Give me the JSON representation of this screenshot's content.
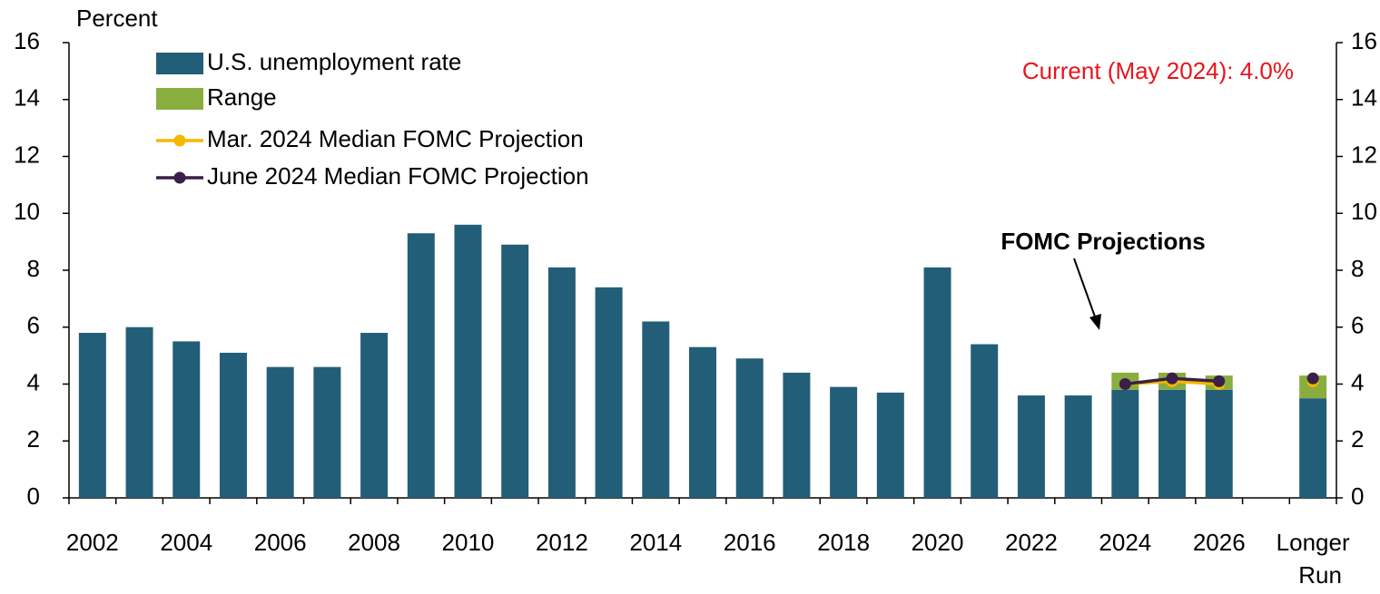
{
  "chart_data": {
    "type": "bar",
    "y_label": "Percent",
    "annotations": [
      "Current (May 2024): 4.0%",
      "FOMC Projections"
    ],
    "annotation_color": "#e8141b",
    "categories": [
      "2002",
      null,
      "2004",
      null,
      "2006",
      null,
      "2008",
      null,
      "2010",
      null,
      "2012",
      null,
      "2014",
      null,
      "2016",
      null,
      "2018",
      null,
      "2020",
      null,
      "2022",
      null,
      "2024",
      null,
      "2026",
      null,
      "Longer Run"
    ],
    "series": [
      {
        "name": "U.S. unemployment rate",
        "type": "bar",
        "color": "#235e78",
        "values": [
          5.8,
          6.0,
          5.5,
          5.1,
          4.6,
          4.6,
          5.8,
          9.3,
          9.6,
          8.9,
          8.1,
          7.4,
          6.2,
          5.3,
          4.9,
          4.4,
          3.9,
          3.7,
          8.1,
          5.4,
          3.6,
          3.6,
          3.8,
          3.8,
          3.8,
          null,
          3.5
        ]
      },
      {
        "name": "Range",
        "type": "bar",
        "color": "#8aad3f",
        "values": [
          null,
          null,
          null,
          null,
          null,
          null,
          null,
          null,
          null,
          null,
          null,
          null,
          null,
          null,
          null,
          null,
          null,
          null,
          null,
          null,
          null,
          null,
          0.6,
          0.6,
          0.5,
          null,
          0.8
        ]
      },
      {
        "name": "Mar. 2024 Median FOMC Projection",
        "type": "line",
        "color": "#f5b800",
        "values": [
          null,
          null,
          null,
          null,
          null,
          null,
          null,
          null,
          null,
          null,
          null,
          null,
          null,
          null,
          null,
          null,
          null,
          null,
          null,
          null,
          null,
          null,
          4.0,
          4.1,
          4.0,
          null,
          4.1
        ]
      },
      {
        "name": "June 2024 Median FOMC Projection",
        "type": "line",
        "color": "#3a1f48",
        "values": [
          null,
          null,
          null,
          null,
          null,
          null,
          null,
          null,
          null,
          null,
          null,
          null,
          null,
          null,
          null,
          null,
          null,
          null,
          null,
          null,
          null,
          null,
          4.0,
          4.2,
          4.1,
          null,
          4.2
        ]
      }
    ],
    "ylim": [
      0,
      16
    ],
    "yticks": [
      0,
      2,
      4,
      6,
      8,
      10,
      12,
      14,
      16
    ],
    "y2lim": [
      0,
      16
    ],
    "y2ticks": [
      0,
      2,
      4,
      6,
      8,
      10,
      12,
      14,
      16
    ],
    "grid": false
  }
}
